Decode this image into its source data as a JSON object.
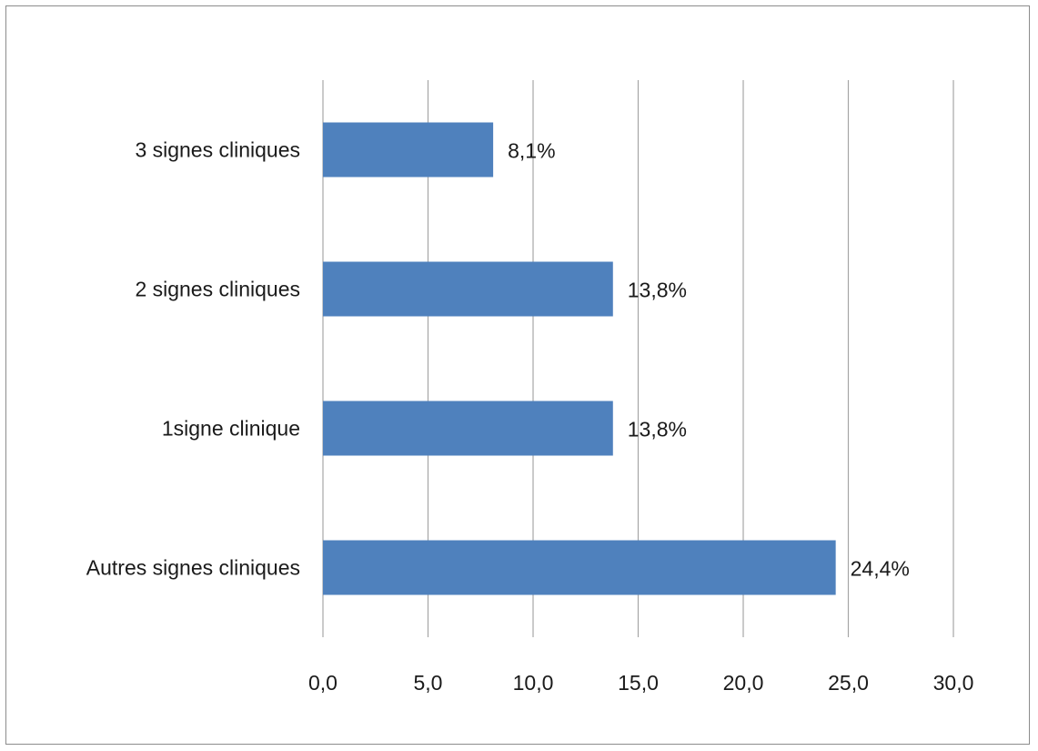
{
  "chart_data": {
    "type": "bar",
    "orientation": "horizontal",
    "title": "",
    "xlabel": "",
    "ylabel": "",
    "categories": [
      "3 signes cliniques",
      "2 signes cliniques",
      "1signe clinique",
      "Autres signes cliniques"
    ],
    "values": [
      8.1,
      13.8,
      13.8,
      24.4
    ],
    "data_labels": [
      "8,1%",
      "13,8%",
      "13,8%",
      "24,4%"
    ],
    "xlim": [
      0,
      30
    ],
    "x_ticks": [
      0,
      5,
      10,
      15,
      20,
      25,
      30
    ],
    "x_tick_labels": [
      "0,0",
      "5,0",
      "10,0",
      "15,0",
      "20,0",
      "25,0",
      "30,0"
    ],
    "grid": "vertical",
    "legend": "none",
    "bar_color": "#4f81bd",
    "grid_color": "#a6a6a6"
  }
}
